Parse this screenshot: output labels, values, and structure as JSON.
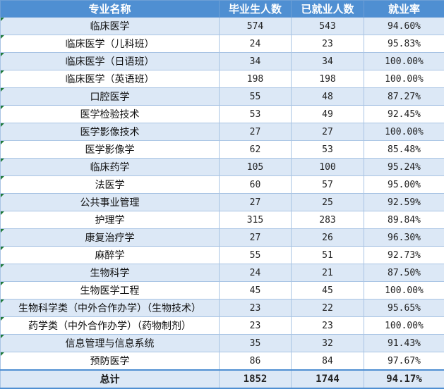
{
  "table": {
    "headers": [
      "专业名称",
      "毕业生人数",
      "已就业人数",
      "就业率"
    ],
    "rows": [
      {
        "major": "临床医学",
        "graduates": "574",
        "employed": "543",
        "rate": "94.60%"
      },
      {
        "major": "临床医学（儿科班）",
        "graduates": "24",
        "employed": "23",
        "rate": "95.83%"
      },
      {
        "major": "临床医学（日语班）",
        "graduates": "34",
        "employed": "34",
        "rate": "100.00%"
      },
      {
        "major": "临床医学（英语班）",
        "graduates": "198",
        "employed": "198",
        "rate": "100.00%"
      },
      {
        "major": "口腔医学",
        "graduates": "55",
        "employed": "48",
        "rate": "87.27%"
      },
      {
        "major": "医学检验技术",
        "graduates": "53",
        "employed": "49",
        "rate": "92.45%"
      },
      {
        "major": "医学影像技术",
        "graduates": "27",
        "employed": "27",
        "rate": "100.00%"
      },
      {
        "major": "医学影像学",
        "graduates": "62",
        "employed": "53",
        "rate": "85.48%"
      },
      {
        "major": "临床药学",
        "graduates": "105",
        "employed": "100",
        "rate": "95.24%"
      },
      {
        "major": "法医学",
        "graduates": "60",
        "employed": "57",
        "rate": "95.00%"
      },
      {
        "major": "公共事业管理",
        "graduates": "27",
        "employed": "25",
        "rate": "92.59%"
      },
      {
        "major": "护理学",
        "graduates": "315",
        "employed": "283",
        "rate": "89.84%"
      },
      {
        "major": "康复治疗学",
        "graduates": "27",
        "employed": "26",
        "rate": "96.30%"
      },
      {
        "major": "麻醉学",
        "graduates": "55",
        "employed": "51",
        "rate": "92.73%"
      },
      {
        "major": "生物科学",
        "graduates": "24",
        "employed": "21",
        "rate": "87.50%"
      },
      {
        "major": "生物医学工程",
        "graduates": "45",
        "employed": "45",
        "rate": "100.00%"
      },
      {
        "major": "生物科学类（中外合作办学）（生物技术）",
        "graduates": "23",
        "employed": "22",
        "rate": "95.65%"
      },
      {
        "major": "药学类（中外合作办学）（药物制剂）",
        "graduates": "23",
        "employed": "23",
        "rate": "100.00%"
      },
      {
        "major": "信息管理与信息系统",
        "graduates": "35",
        "employed": "32",
        "rate": "91.43%"
      },
      {
        "major": "预防医学",
        "graduates": "86",
        "employed": "84",
        "rate": "97.67%"
      }
    ],
    "total": {
      "label": "总计",
      "graduates": "1852",
      "employed": "1744",
      "rate": "94.17%"
    }
  },
  "colors": {
    "header_bg": "#4f8fd2",
    "band_bg": "#dce8f6",
    "border": "#a9c4e4",
    "cell_flag": "#1f7a3a"
  }
}
